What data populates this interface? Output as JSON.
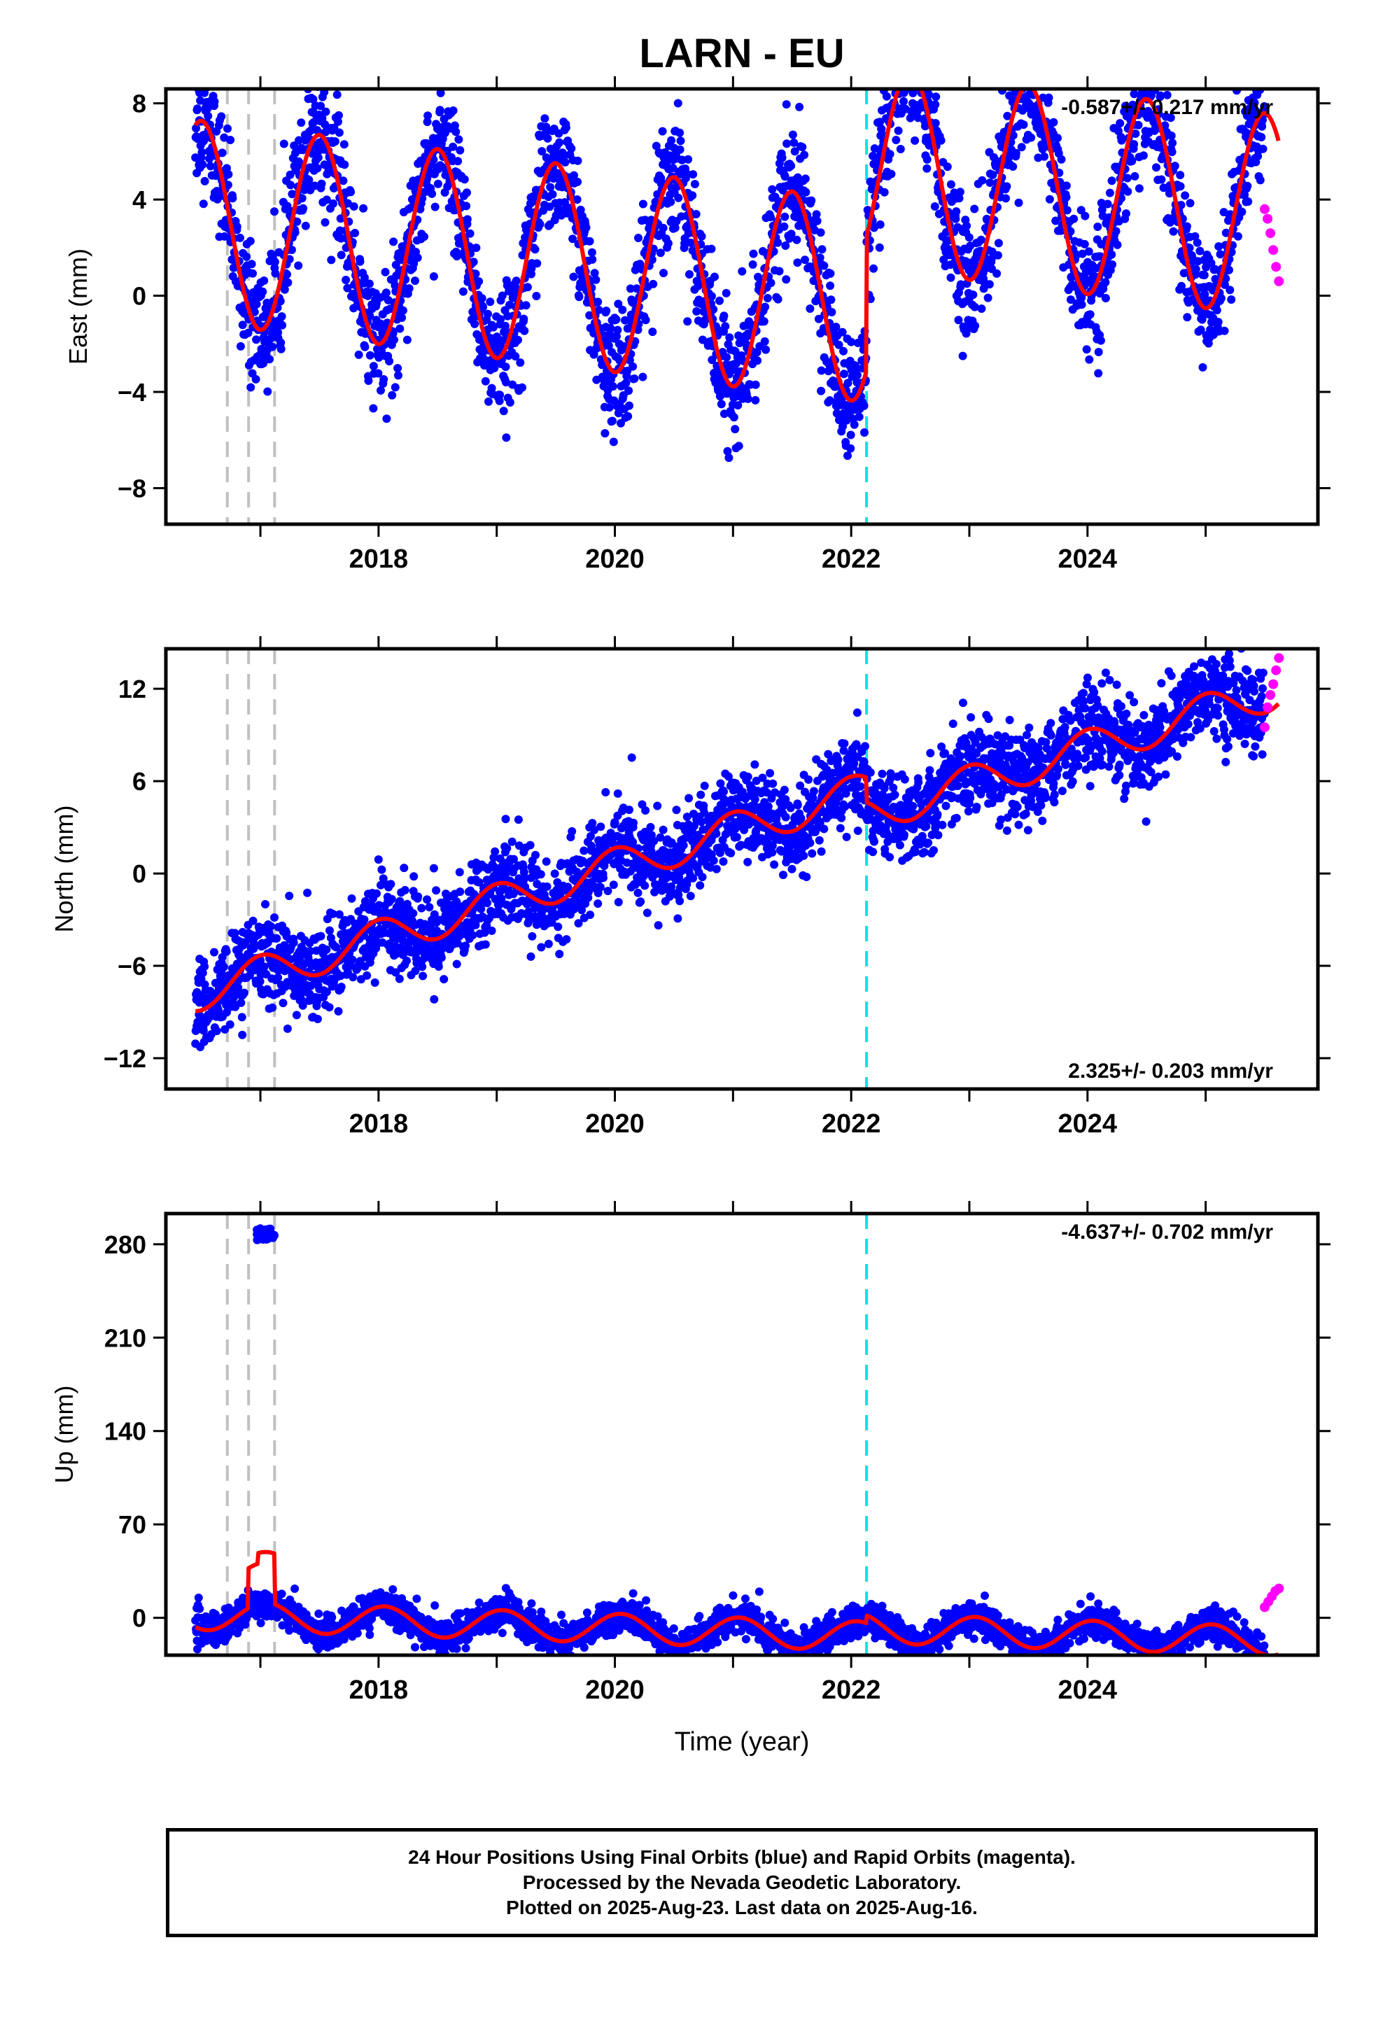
{
  "title": "LARN - EU",
  "colors": {
    "final_orbits": "#0000ff",
    "rapid_orbits": "#ff00ff",
    "model": "#ff0000",
    "equipment_change": "#c0c0c0",
    "earthquake": "#00e5e5"
  },
  "chart_data": [
    {
      "type": "scatter",
      "ylabel": "East (mm)",
      "ylim": [
        -9.5,
        8.6
      ],
      "yticks": [
        -8,
        -4,
        0,
        4,
        8
      ],
      "xlim": [
        2016.2,
        2025.95
      ],
      "xticks": [
        2018,
        2020,
        2022,
        2024
      ],
      "rate_label": "-0.587+/- 0.217 mm/yr",
      "rate_label_position": "top-right",
      "grid": false,
      "vlines_gray": [
        2016.72,
        2016.9,
        2017.12
      ],
      "vline_cyan": 2022.13,
      "model_params": {
        "base": 4.3,
        "rate": -0.587,
        "amplitude": 4.2,
        "peak_phase": 0.43,
        "offset_at_2022_13": 5.6,
        "offset_at_2016_85": -1.5
      },
      "series": [
        {
          "name": "Final Orbits (blue)",
          "x_range": [
            2016.45,
            2025.5
          ],
          "scatter_sd": 1.3
        },
        {
          "name": "Rapid Orbits (magenta)",
          "x_range": [
            2025.5,
            2025.62
          ],
          "values": [
            3.6,
            3.2,
            2.6,
            1.9,
            1.2,
            0.6
          ]
        }
      ]
    },
    {
      "type": "scatter",
      "ylabel": "North (mm)",
      "ylim": [
        -14,
        14.6
      ],
      "yticks": [
        -12,
        -6,
        0,
        6,
        12
      ],
      "xlim": [
        2016.2,
        2025.95
      ],
      "xticks": [
        2018,
        2020,
        2022,
        2024
      ],
      "rate_label": "2.325+/- 0.203 mm/yr",
      "rate_label_position": "bottom-right",
      "grid": false,
      "vlines_gray": [
        2016.72,
        2016.9,
        2017.12
      ],
      "vline_cyan": 2022.13,
      "model_params": {
        "start": -7.8,
        "rate": 2.325,
        "amplitude": 1.2,
        "peak_phase": 0.55,
        "offset_at_2022_13": -1.6
      },
      "series": [
        {
          "name": "Final Orbits (blue)",
          "x_range": [
            2016.45,
            2025.5
          ],
          "scatter_sd": 1.4
        },
        {
          "name": "Rapid Orbits (magenta)",
          "x_range": [
            2025.5,
            2025.62
          ],
          "values": [
            9.5,
            10.8,
            11.6,
            12.3,
            13.2,
            14.0
          ]
        }
      ]
    },
    {
      "type": "scatter",
      "ylabel": "Up (mm)",
      "xlabel": "Time (year)",
      "ylim": [
        -28,
        303
      ],
      "yticks": [
        0,
        70,
        140,
        210,
        280
      ],
      "xlim": [
        2016.2,
        2025.95
      ],
      "xticks": [
        2018,
        2020,
        2022,
        2024
      ],
      "rate_label": "-4.637+/- 0.702 mm/yr",
      "rate_label_position": "top-right",
      "grid": false,
      "vlines_gray": [
        2016.72,
        2016.9,
        2017.12
      ],
      "vline_cyan": 2022.13,
      "outlier_cluster": {
        "x_range": [
          2016.97,
          2017.12
        ],
        "y_range": [
          283,
          292
        ]
      },
      "model_params": {
        "start": 2,
        "rate": -4.637,
        "amplitude": 11,
        "peak_phase": 0.6,
        "step_at_2016_9": 30,
        "step_at_2016_98": 8,
        "step_at_2017_12": -20
      },
      "series": [
        {
          "name": "Final Orbits (blue)",
          "x_range": [
            2016.45,
            2025.5
          ],
          "scatter_sd": 6
        },
        {
          "name": "Rapid Orbits (magenta)",
          "x_range": [
            2025.5,
            2025.62
          ],
          "values": [
            8,
            12,
            16,
            20,
            22
          ]
        }
      ]
    }
  ],
  "caption": {
    "line1": "24 Hour Positions Using Final Orbits (blue) and Rapid Orbits (magenta).",
    "line2": "Processed by the Nevada Geodetic Laboratory.",
    "line3": "Plotted on 2025-Aug-23. Last data on 2025-Aug-16."
  }
}
